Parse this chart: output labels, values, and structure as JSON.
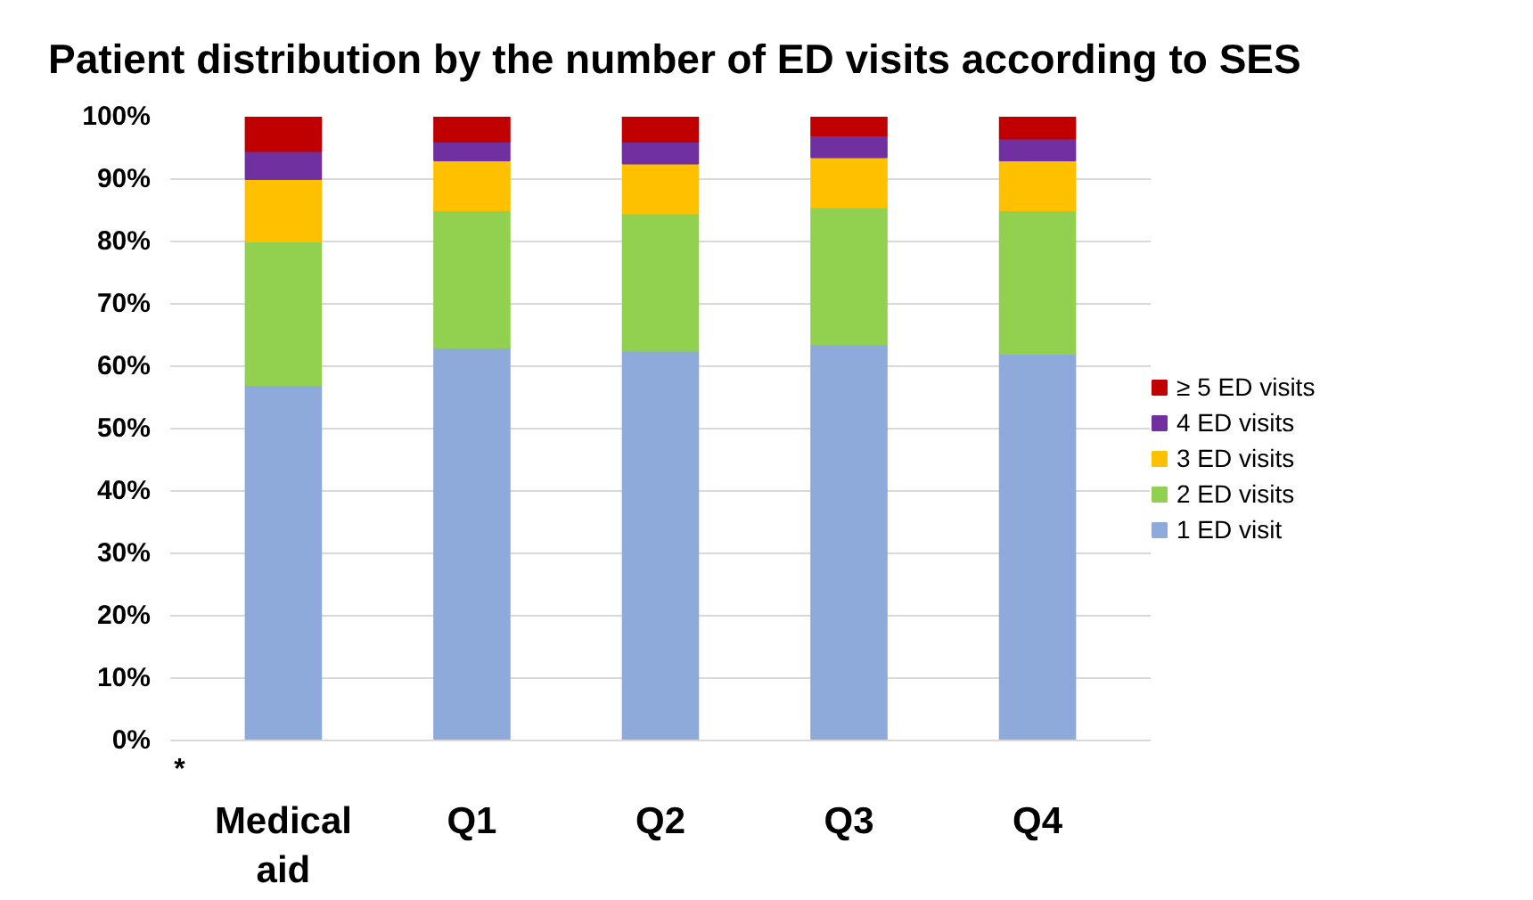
{
  "chart_data": {
    "type": "bar",
    "title": "Patient distribution by the number of ED visits according to SES",
    "categories": [
      "Medical\naid",
      "Q1",
      "Q2",
      "Q3",
      "Q4"
    ],
    "stacked": true,
    "series": [
      {
        "name": "1 ED visit",
        "color": "#8eaadb",
        "values": [
          57,
          63,
          62.5,
          63.5,
          62
        ]
      },
      {
        "name": "2 ED visits",
        "color": "#92d050",
        "values": [
          23,
          22,
          22,
          22,
          23
        ]
      },
      {
        "name": "3 ED visits",
        "color": "#ffc000",
        "values": [
          10,
          8,
          8,
          8,
          8
        ]
      },
      {
        "name": "4 ED visits",
        "color": "#7030a0",
        "values": [
          4.5,
          3,
          3.5,
          3.5,
          3.5
        ]
      },
      {
        "name": "≥ 5 ED visits",
        "color": "#c00000",
        "values": [
          5.5,
          4,
          4,
          3,
          3.5
        ]
      }
    ],
    "ylim": [
      0,
      100
    ],
    "yticks": [
      {
        "value": 0,
        "label": "0%"
      },
      {
        "value": 10,
        "label": "10%"
      },
      {
        "value": 20,
        "label": "20%"
      },
      {
        "value": 30,
        "label": "30%"
      },
      {
        "value": 40,
        "label": "40%"
      },
      {
        "value": 50,
        "label": "50%"
      },
      {
        "value": 60,
        "label": "60%"
      },
      {
        "value": 70,
        "label": "70%"
      },
      {
        "value": 80,
        "label": "80%"
      },
      {
        "value": 90,
        "label": "90%"
      },
      {
        "value": 100,
        "label": "100%"
      }
    ],
    "grid": "y",
    "legend": "right",
    "annotations": [
      "*"
    ]
  }
}
